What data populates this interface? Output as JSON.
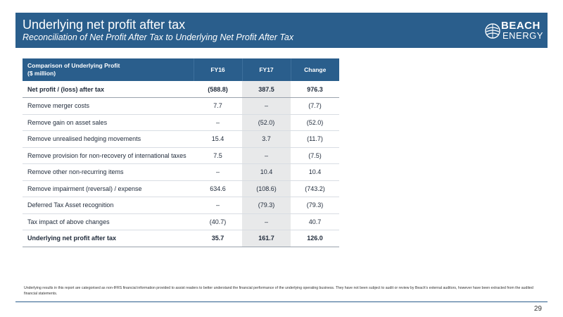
{
  "header": {
    "title": "Underlying net profit after tax",
    "subtitle": "Reconciliation of Net Profit After Tax to Underlying Net Profit After Tax"
  },
  "logo": {
    "line1": "BEACH",
    "line2": "ENERGY"
  },
  "table": {
    "header_label_line1": "Comparison of Underlying Profit",
    "header_label_line2": "($ million)",
    "columns": [
      "FY16",
      "FY17",
      "Change"
    ],
    "rows": [
      {
        "label": "Net profit / (loss) after tax",
        "fy16": "(588.8)",
        "fy17": "387.5",
        "change": "976.3"
      },
      {
        "label": "Remove merger costs",
        "fy16": "7.7",
        "fy17": "–",
        "change": "(7.7)"
      },
      {
        "label": "Remove gain on asset sales",
        "fy16": "–",
        "fy17": "(52.0)",
        "change": "(52.0)"
      },
      {
        "label": "Remove unrealised hedging movements",
        "fy16": "15.4",
        "fy17": "3.7",
        "change": "(11.7)"
      },
      {
        "label": "Remove provision for non-recovery of international taxes",
        "fy16": "7.5",
        "fy17": "–",
        "change": "(7.5)"
      },
      {
        "label": "Remove other non-recurring items",
        "fy16": "–",
        "fy17": "10.4",
        "change": "10.4"
      },
      {
        "label": "Remove impairment (reversal) / expense",
        "fy16": "634.6",
        "fy17": "(108.6)",
        "change": "(743.2)"
      },
      {
        "label": "Deferred Tax Asset recognition",
        "fy16": "–",
        "fy17": "(79.3)",
        "change": "(79.3)"
      },
      {
        "label": "Tax impact of above changes",
        "fy16": "(40.7)",
        "fy17": "–",
        "change": "40.7"
      },
      {
        "label": "Underlying net profit after tax",
        "fy16": "35.7",
        "fy17": "161.7",
        "change": "126.0"
      }
    ]
  },
  "footnote": "Underlying results in this report are categorised as non-IFRS financial information provided to assist readers to better understand the financial performance of the underlying operating business. They have not been subject to audit or review by Beach's external auditors, however have been extracted from the audited financial statements.",
  "page_number": "29",
  "colors": {
    "brand_blue": "#2a5e8c",
    "fy17_shade": "#e8e9ea"
  }
}
